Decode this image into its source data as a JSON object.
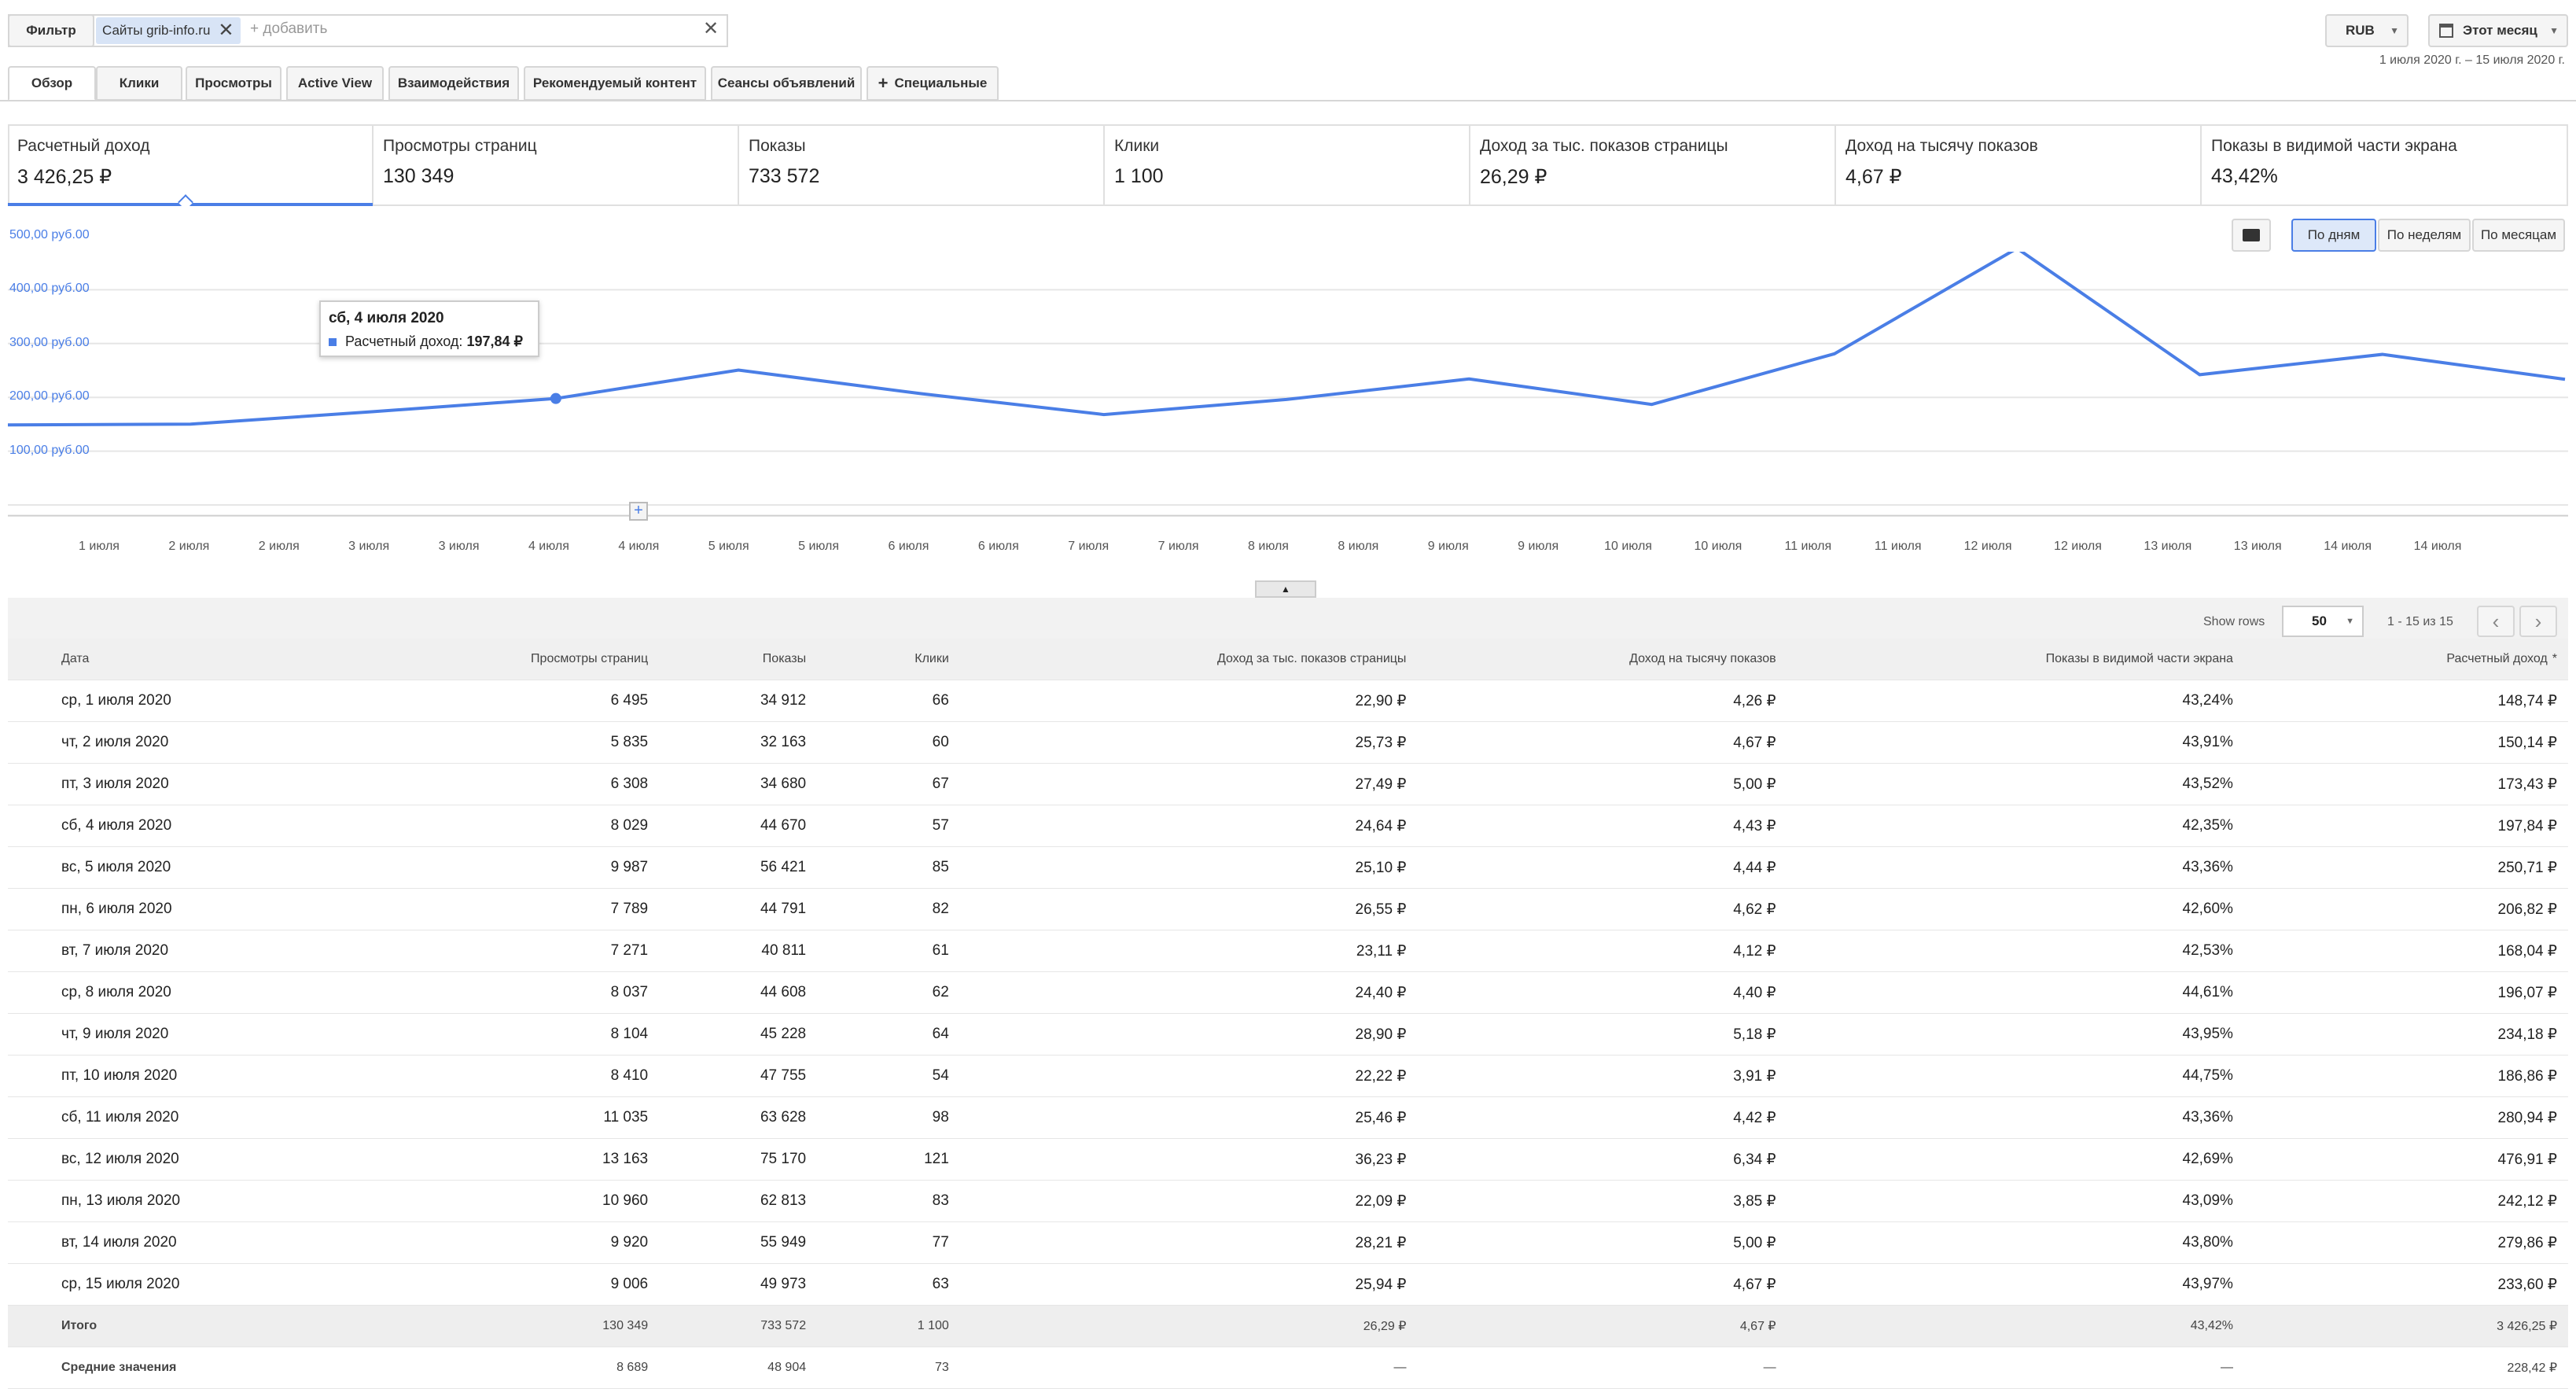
{
  "filter_bar": {
    "filter_label": "Фильтр",
    "chip_label": "Сайты grib-info.ru",
    "add_placeholder": "+ добавить",
    "currency": "RUB",
    "period": "Этот месяц",
    "date_range": "1 июля 2020 г. – 15 июля 2020 г."
  },
  "tabs": [
    "Обзор",
    "Клики",
    "Просмотры",
    "Active View",
    "Взаимодействия",
    "Рекомендуемый контент",
    "Сеансы объявлений",
    "Специальные"
  ],
  "cards": [
    {
      "label": "Расчетный доход",
      "value": "3 426,25 ₽"
    },
    {
      "label": "Просмотры страниц",
      "value": "130 349"
    },
    {
      "label": "Показы",
      "value": "733 572"
    },
    {
      "label": "Клики",
      "value": "1 100"
    },
    {
      "label": "Доход за тыс. показов страницы",
      "value": "26,29 ₽"
    },
    {
      "label": "Доход на тысячу показов",
      "value": "4,67 ₽"
    },
    {
      "label": "Показы в видимой части экрана",
      "value": "43,42%"
    }
  ],
  "granularity": [
    "По дням",
    "По неделям",
    "По месяцам"
  ],
  "tooltip": {
    "title": "сб, 4 июля 2020",
    "series": "Расчетный доход:",
    "value": "197,84 ₽"
  },
  "chart_data": {
    "type": "line",
    "series": [
      {
        "name": "Расчетный доход",
        "values": [
          148.74,
          150.14,
          173.43,
          197.84,
          250.71,
          206.82,
          168.04,
          196.07,
          234.18,
          186.86,
          280.94,
          476.91,
          242.12,
          279.86,
          233.6
        ]
      }
    ],
    "x": [
      "1 июля",
      "2 июля",
      "3 июля",
      "4 июля",
      "5 июля",
      "6 июля",
      "7 июля",
      "8 июля",
      "9 июля",
      "10 июля",
      "11 июля",
      "12 июля",
      "13 июля",
      "14 июля",
      "15 июля"
    ],
    "x_tick_labels": [
      "1 июля",
      "2 июля",
      "2 июля",
      "3 июля",
      "3 июля",
      "4 июля",
      "4 июля",
      "5 июля",
      "5 июля",
      "6 июля",
      "6 июля",
      "7 июля",
      "7 июля",
      "8 июля",
      "8 июля",
      "9 июля",
      "9 июля",
      "10 июля",
      "10 июля",
      "11 июля",
      "11 июля",
      "12 июля",
      "12 июля",
      "13 июля",
      "13 июля",
      "14 июля",
      "14 июля"
    ],
    "y_tick_labels": [
      "500,00 руб.00",
      "400,00 руб.00",
      "300,00 руб.00",
      "200,00 руб.00",
      "100,00 руб.00"
    ],
    "ylim": [
      0,
      500
    ],
    "color": "#4a7ee6",
    "grid": true
  },
  "table": {
    "show_rows_label": "Show rows",
    "show_rows_value": "50",
    "pagination": "1 - 15 из 15",
    "columns": [
      "Дата",
      "Просмотры страниц",
      "Показы",
      "Клики",
      "Доход за тыс. показов страницы",
      "Доход на тысячу показов",
      "Показы в видимой части экрана",
      "Расчетный доход"
    ],
    "sort_indicator": "*",
    "rows": [
      [
        "ср, 1 июля 2020",
        "6 495",
        "34 912",
        "66",
        "22,90 ₽",
        "4,26 ₽",
        "43,24%",
        "148,74 ₽"
      ],
      [
        "чт, 2 июля 2020",
        "5 835",
        "32 163",
        "60",
        "25,73 ₽",
        "4,67 ₽",
        "43,91%",
        "150,14 ₽"
      ],
      [
        "пт, 3 июля 2020",
        "6 308",
        "34 680",
        "67",
        "27,49 ₽",
        "5,00 ₽",
        "43,52%",
        "173,43 ₽"
      ],
      [
        "сб, 4 июля 2020",
        "8 029",
        "44 670",
        "57",
        "24,64 ₽",
        "4,43 ₽",
        "42,35%",
        "197,84 ₽"
      ],
      [
        "вс, 5 июля 2020",
        "9 987",
        "56 421",
        "85",
        "25,10 ₽",
        "4,44 ₽",
        "43,36%",
        "250,71 ₽"
      ],
      [
        "пн, 6 июля 2020",
        "7 789",
        "44 791",
        "82",
        "26,55 ₽",
        "4,62 ₽",
        "42,60%",
        "206,82 ₽"
      ],
      [
        "вт, 7 июля 2020",
        "7 271",
        "40 811",
        "61",
        "23,11 ₽",
        "4,12 ₽",
        "42,53%",
        "168,04 ₽"
      ],
      [
        "ср, 8 июля 2020",
        "8 037",
        "44 608",
        "62",
        "24,40 ₽",
        "4,40 ₽",
        "44,61%",
        "196,07 ₽"
      ],
      [
        "чт, 9 июля 2020",
        "8 104",
        "45 228",
        "64",
        "28,90 ₽",
        "5,18 ₽",
        "43,95%",
        "234,18 ₽"
      ],
      [
        "пт, 10 июля 2020",
        "8 410",
        "47 755",
        "54",
        "22,22 ₽",
        "3,91 ₽",
        "44,75%",
        "186,86 ₽"
      ],
      [
        "сб, 11 июля 2020",
        "11 035",
        "63 628",
        "98",
        "25,46 ₽",
        "4,42 ₽",
        "43,36%",
        "280,94 ₽"
      ],
      [
        "вс, 12 июля 2020",
        "13 163",
        "75 170",
        "121",
        "36,23 ₽",
        "6,34 ₽",
        "42,69%",
        "476,91 ₽"
      ],
      [
        "пн, 13 июля 2020",
        "10 960",
        "62 813",
        "83",
        "22,09 ₽",
        "3,85 ₽",
        "43,09%",
        "242,12 ₽"
      ],
      [
        "вт, 14 июля 2020",
        "9 920",
        "55 949",
        "77",
        "28,21 ₽",
        "5,00 ₽",
        "43,80%",
        "279,86 ₽"
      ],
      [
        "ср, 15 июля 2020",
        "9 006",
        "49 973",
        "63",
        "25,94 ₽",
        "4,67 ₽",
        "43,97%",
        "233,60 ₽"
      ]
    ],
    "total": [
      "Итого",
      "130 349",
      "733 572",
      "1 100",
      "26,29 ₽",
      "4,67 ₽",
      "43,42%",
      "3 426,25 ₽"
    ],
    "average": [
      "Средние значения",
      "8 689",
      "48 904",
      "73",
      "—",
      "—",
      "—",
      "228,42 ₽"
    ]
  }
}
